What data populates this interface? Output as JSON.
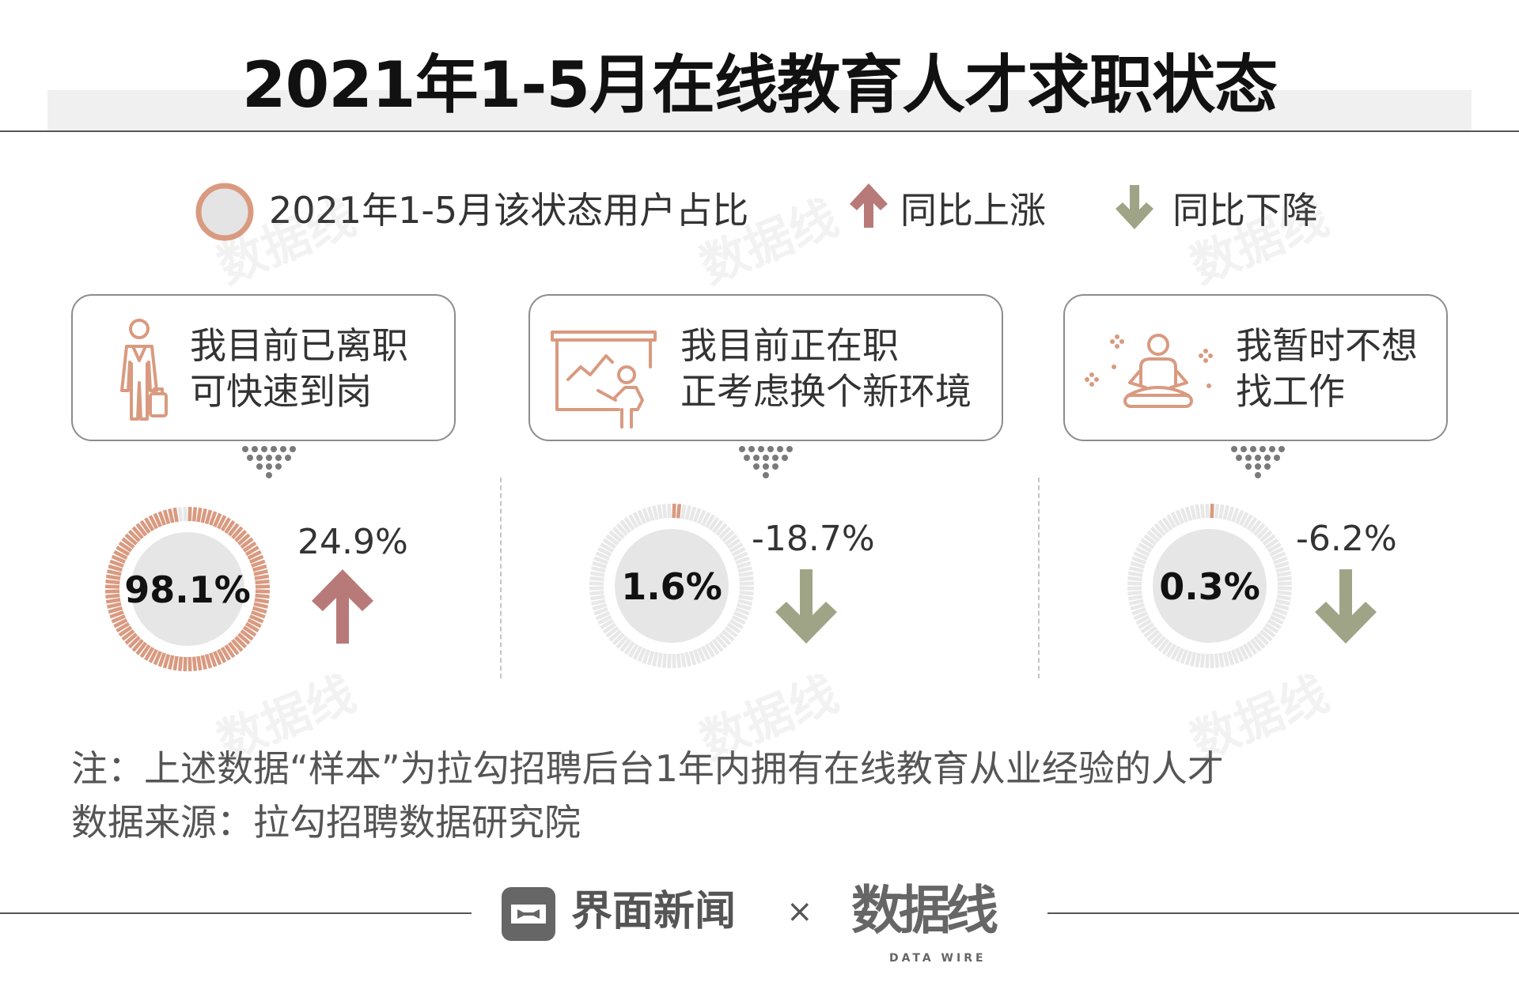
{
  "title": "2021年1-5月在线教育人才求职状态",
  "legend": {
    "share_label": "2021年1-5月该状态用户占比",
    "up_label": "同比上涨",
    "down_label": "同比下降",
    "ring_color": "#d99a80",
    "up_color": "#b87a78",
    "down_color": "#a0a486"
  },
  "cards": [
    {
      "line1": "我目前已离职",
      "line2": "可快速到岗",
      "icon": "person-with-briefcase-icon"
    },
    {
      "line1": "我目前正在职",
      "line2": "正考虑换个新环境",
      "icon": "presentation-board-icon"
    },
    {
      "line1": "我暂时不想",
      "line2": "找工作",
      "icon": "meditation-icon"
    }
  ],
  "chart_data": {
    "type": "donut",
    "categories": [
      "我目前已离职可快速到岗",
      "我目前正在职正考虑换个新环境",
      "我暂时不想找工作"
    ],
    "share_values": [
      98.1,
      1.6,
      0.3
    ],
    "share_labels": [
      "98.1%",
      "1.6%",
      "0.3%"
    ],
    "yoy_values": [
      24.9,
      -18.7,
      -6.2
    ],
    "yoy_labels": [
      "24.9%",
      "-18.7%",
      "-6.2%"
    ],
    "yoy_direction": [
      "up",
      "down",
      "down"
    ]
  },
  "notes": {
    "note": "注：上述数据“样本”为拉勾招聘后台1年内拥有在线教育从业经验的人才",
    "source": "数据来源：拉勾招聘数据研究院"
  },
  "footer": {
    "brand1": "界面新闻",
    "cross": "×",
    "brand2": "数据线",
    "brand2_sub": "DATA WIRE"
  }
}
